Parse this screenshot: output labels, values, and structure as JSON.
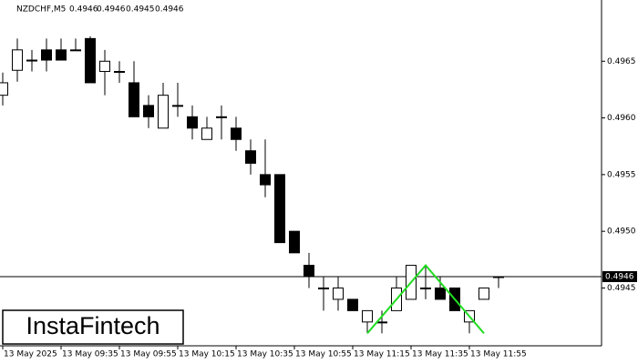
{
  "chart_data": {
    "type": "candlestick",
    "header": {
      "symbol": "NZDCHF,M5",
      "ohlc": [
        0.4946,
        0.4946,
        0.4945,
        0.4946
      ]
    },
    "watermark": "InstaFintech",
    "categories": [
      "13 May 2025",
      null,
      null,
      null,
      "13 May 09:35",
      null,
      null,
      null,
      "13 May 09:55",
      null,
      null,
      null,
      "13 May 10:15",
      null,
      null,
      null,
      "13 May 10:35",
      null,
      null,
      null,
      "13 May 10:55",
      null,
      null,
      null,
      "13 May 11:15",
      null,
      null,
      null,
      "13 May 11:35",
      null,
      null,
      null,
      "13 May 11:55",
      null,
      null
    ],
    "open": [
      0.4962,
      0.49642,
      0.49651,
      0.4966,
      0.4966,
      0.4966,
      0.4967,
      0.49641,
      0.49641,
      0.49631,
      0.49611,
      0.49591,
      0.49611,
      0.49601,
      0.49581,
      0.49601,
      0.49591,
      0.49571,
      0.4955,
      0.4955,
      0.495,
      0.4947,
      0.4945,
      0.4944,
      0.4944,
      0.4942,
      0.4942,
      0.4943,
      0.4944,
      0.4945,
      0.4945,
      0.4945,
      0.4942,
      0.4944,
      0.4946
    ],
    "high": [
      0.4964,
      0.4967,
      0.4966,
      0.4967,
      0.4967,
      0.4967,
      0.49672,
      0.4966,
      0.4965,
      0.4965,
      0.4962,
      0.49631,
      0.49631,
      0.49611,
      0.49601,
      0.49611,
      0.49601,
      0.49581,
      0.49581,
      0.4955,
      0.495,
      0.49481,
      0.4946,
      0.4946,
      0.4944,
      0.4943,
      0.4943,
      0.4946,
      0.4947,
      0.4947,
      0.4946,
      0.4945,
      0.4943,
      0.4945,
      0.4946
    ],
    "low": [
      0.49611,
      0.49632,
      0.49641,
      0.49641,
      0.49651,
      0.4966,
      0.49631,
      0.4962,
      0.49631,
      0.49601,
      0.49591,
      0.49591,
      0.49601,
      0.49581,
      0.49581,
      0.49581,
      0.49571,
      0.4955,
      0.4953,
      0.4949,
      0.49481,
      0.4945,
      0.4943,
      0.4943,
      0.4943,
      0.4941,
      0.4941,
      0.4943,
      0.4944,
      0.4944,
      0.4944,
      0.4943,
      0.4941,
      0.4944,
      0.4945
    ],
    "close": [
      0.49631,
      0.4966,
      0.49651,
      0.49651,
      0.49651,
      0.4966,
      0.49631,
      0.4965,
      0.49641,
      0.49601,
      0.49601,
      0.4962,
      0.49611,
      0.49591,
      0.49591,
      0.49601,
      0.49581,
      0.4956,
      0.49541,
      0.4949,
      0.49481,
      0.4946,
      0.4945,
      0.4945,
      0.4943,
      0.4943,
      0.4942,
      0.4945,
      0.4947,
      0.4945,
      0.4944,
      0.4943,
      0.4943,
      0.4945,
      0.4946
    ],
    "up_color": "#ffffff",
    "down_color": "#000000",
    "ylim": [
      0.49399,
      0.49704
    ],
    "yticks": [
      0.4945,
      {
        "value": 0.495,
        "label": "0.4950"
      },
      0.4955,
      {
        "value": 0.496,
        "label": "0.4960"
      },
      0.4965
    ],
    "last_price": 0.4946,
    "pattern": {
      "color": "#22dd22",
      "index": [
        25,
        29,
        33
      ],
      "values": [
        0.4941,
        0.4947,
        0.4941
      ]
    }
  }
}
